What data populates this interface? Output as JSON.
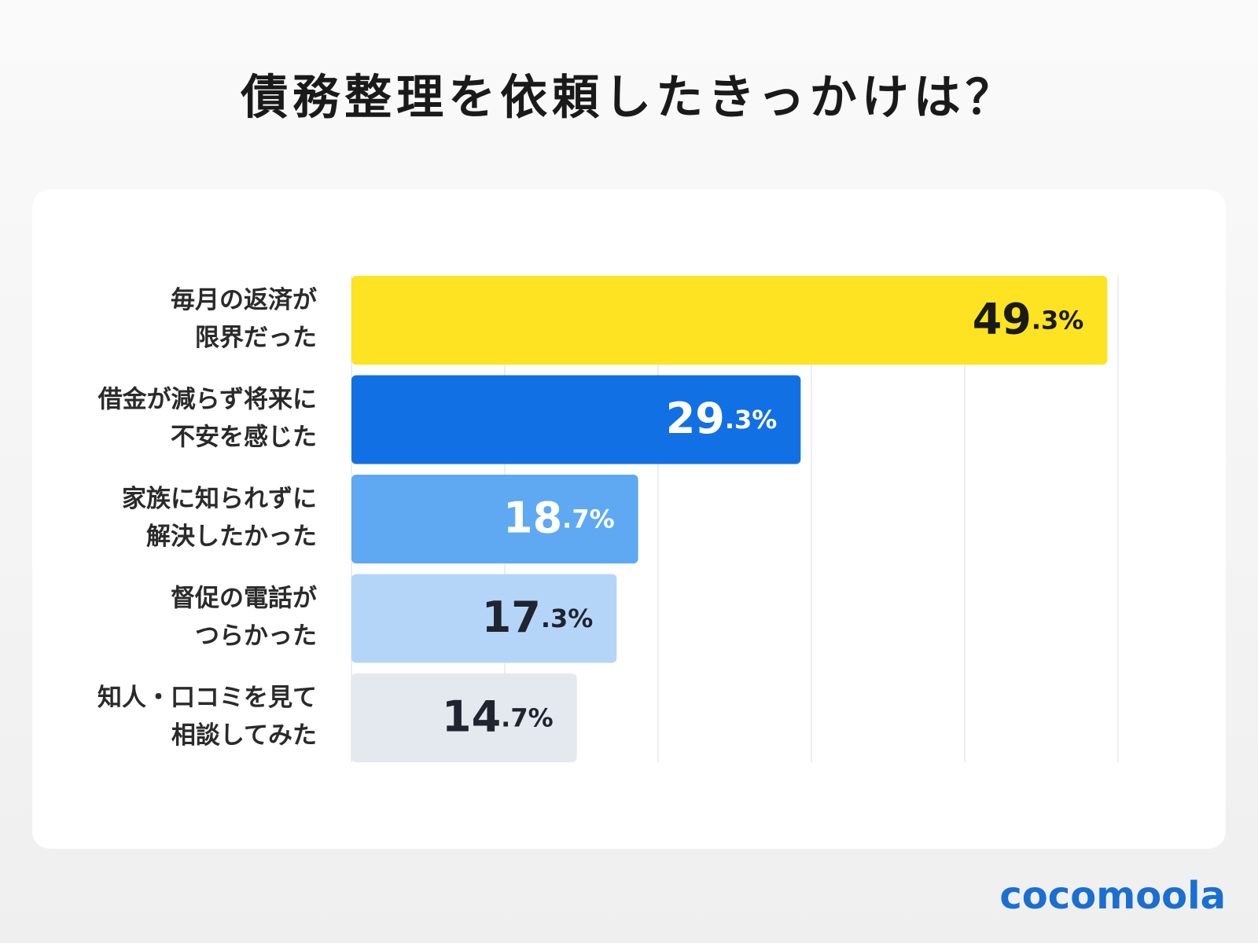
{
  "chart_data": {
    "type": "barh",
    "title": "債務整理を依頼したきっかけは？",
    "categories": [
      [
        "毎月の返済が",
        "限界だった"
      ],
      [
        "借金が減らず将来に",
        "不安を感じた"
      ],
      [
        "家族に知られずに",
        "解決したかった"
      ],
      [
        "督促の電話が",
        "つらかった"
      ],
      [
        "知人・口コミを見て",
        "相談してみた"
      ]
    ],
    "values": [
      49.3,
      29.3,
      18.7,
      17.3,
      14.7
    ],
    "value_labels": [
      "49.3%",
      "29.3%",
      "18.7%",
      "17.3%",
      "14.7%"
    ],
    "colors": [
      "#fde321",
      "#1170e4",
      "#5ea9f2",
      "#b5d5f8",
      "#e4e8ef"
    ],
    "label_colors": [
      "#1a1a1a",
      "#ffffff",
      "#ffffff",
      "#1f2430",
      "#1f2430"
    ],
    "xlim": [
      0,
      50
    ],
    "xticks": [
      0,
      10,
      20,
      30,
      40,
      50
    ],
    "grid": true
  },
  "brand": "cocomoola"
}
